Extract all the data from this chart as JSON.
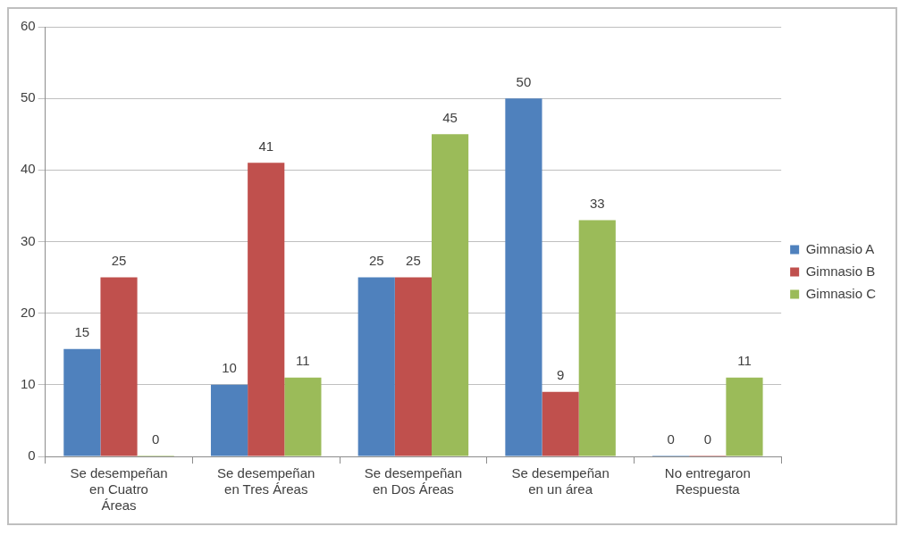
{
  "chart_data": {
    "type": "bar",
    "categories": [
      "Se desempeñan en Cuatro Áreas",
      "Se desempeñan en Tres Áreas",
      "Se desempeñan en Dos Áreas",
      "Se desempeñan en un área",
      "No entregaron Respuesta"
    ],
    "series": [
      {
        "name": "Gimnasio A",
        "color": "#4f81bd",
        "values": [
          15,
          10,
          25,
          50,
          0
        ]
      },
      {
        "name": "Gimnasio B",
        "color": "#c0504d",
        "values": [
          25,
          41,
          25,
          9,
          0
        ]
      },
      {
        "name": "Gimnasio C",
        "color": "#9bbb59",
        "values": [
          0,
          11,
          45,
          33,
          11
        ]
      }
    ],
    "ylim": [
      0,
      60
    ],
    "yticks": [
      0,
      10,
      20,
      30,
      40,
      50,
      60
    ],
    "grid": "y",
    "legend": "right",
    "data_labels": true
  }
}
